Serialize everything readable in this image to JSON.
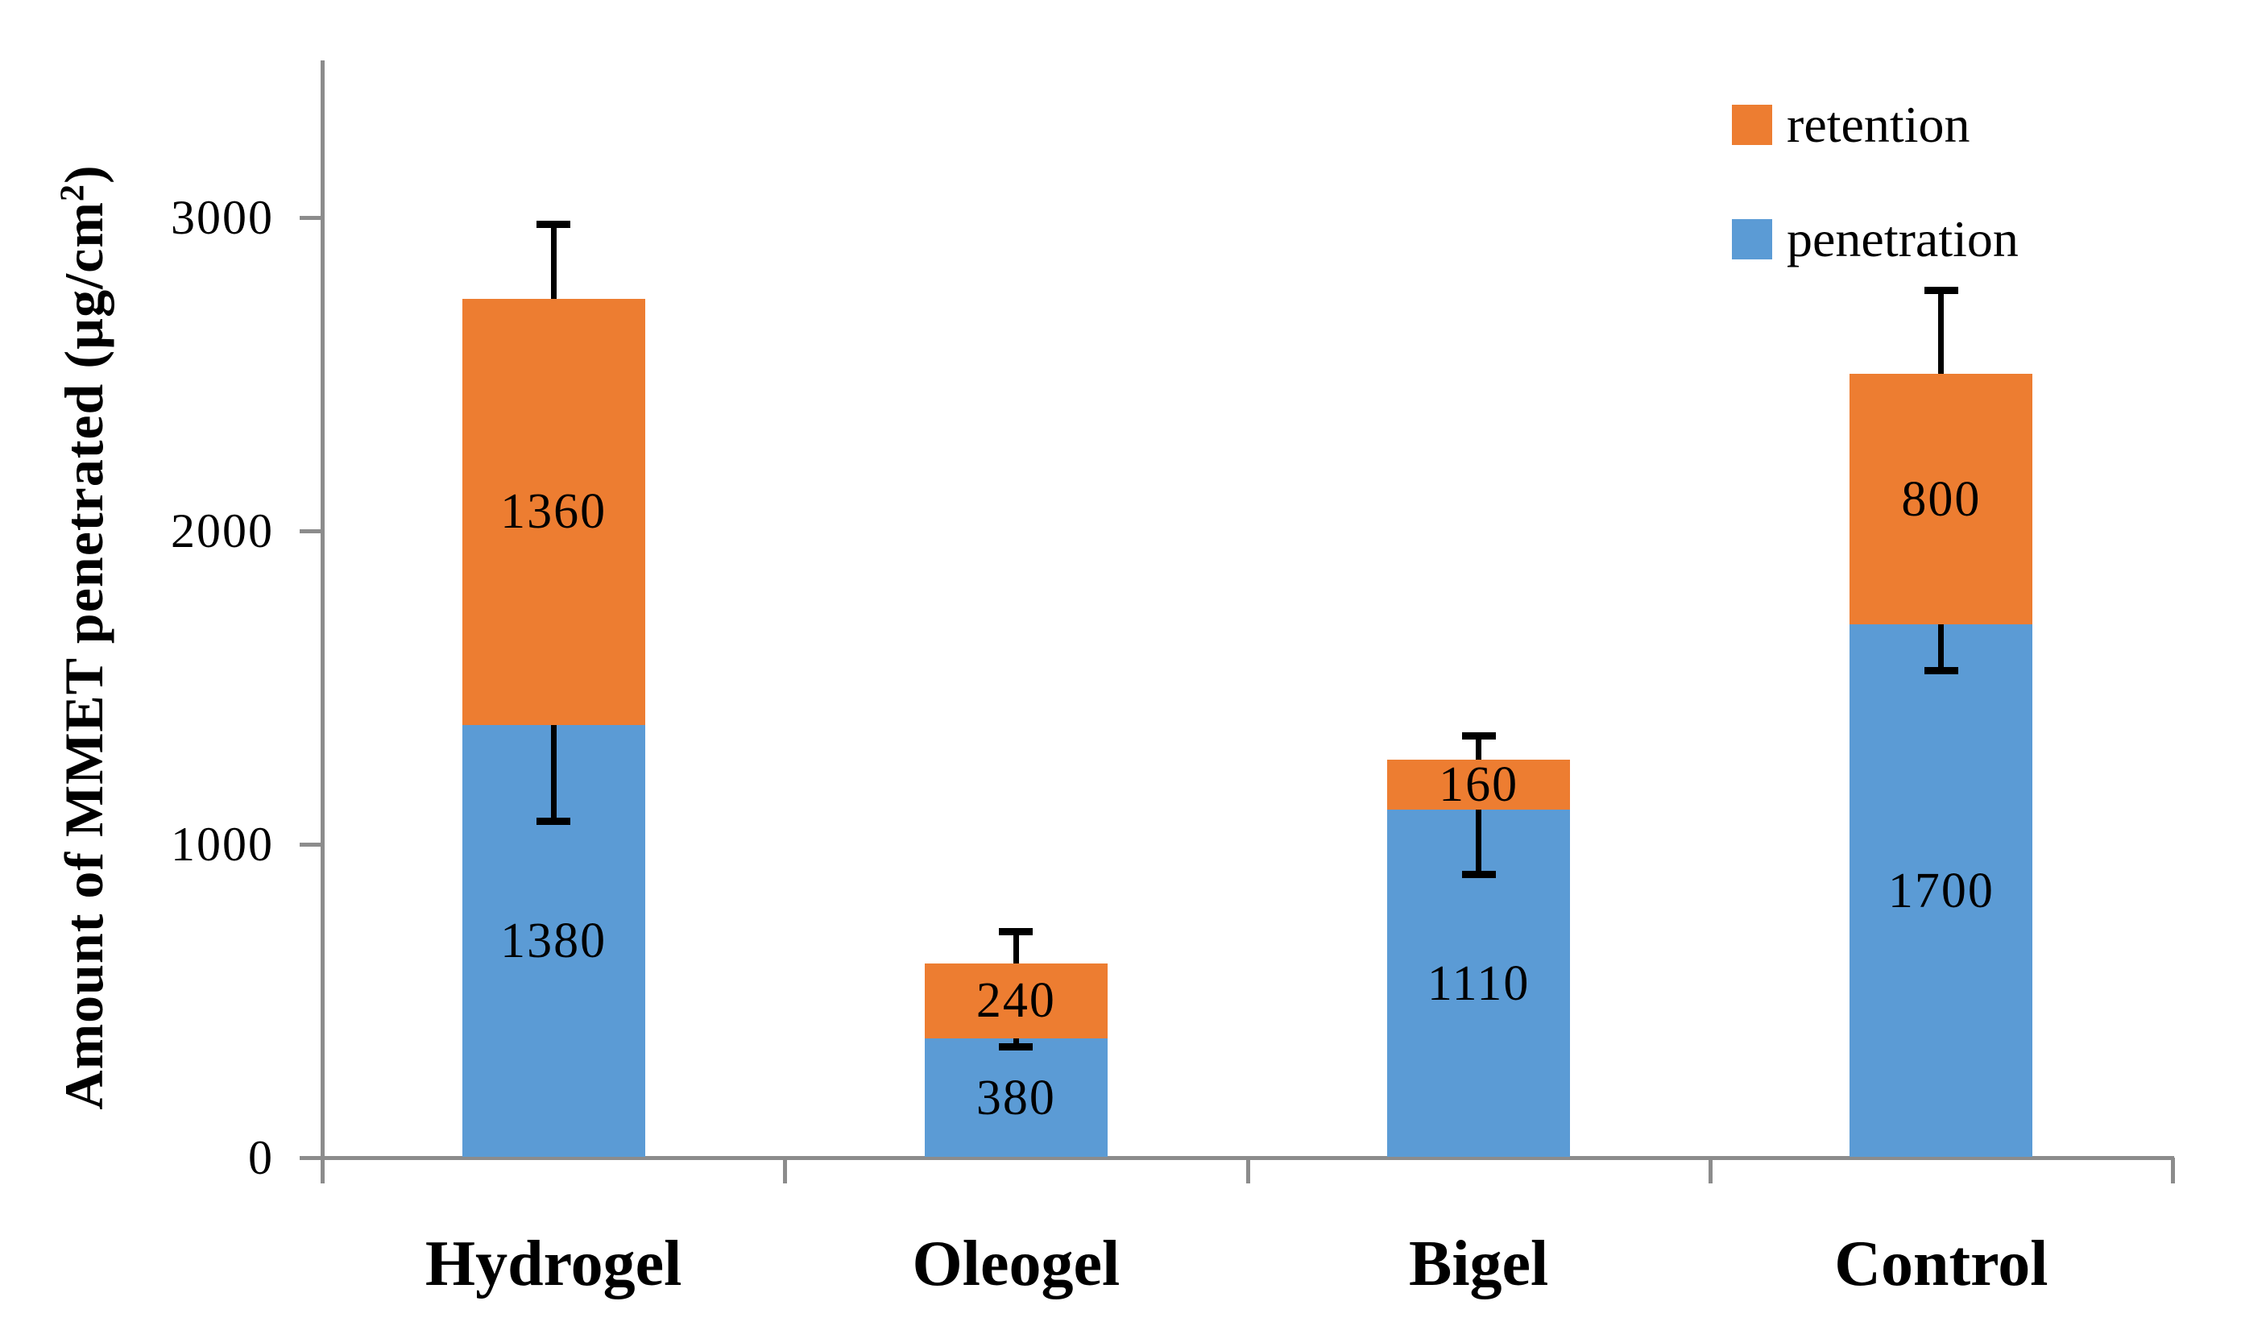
{
  "figure": {
    "background": "#ffffff"
  },
  "chart_data": {
    "type": "bar",
    "subtype": "stacked-column",
    "title": "",
    "xlabel": "",
    "ylabel": {
      "prefix": "Amount of MMET penetrated (µg/cm",
      "sup": "2",
      "suffix": ")"
    },
    "categories": [
      "Hydrogel",
      "Oleogel",
      "Bigel",
      "Control"
    ],
    "series": [
      {
        "name": "penetration",
        "color": "#5B9BD5",
        "values": [
          1380,
          380,
          1110,
          1700
        ],
        "data_labels": [
          "1380",
          "380",
          "1110",
          "1700"
        ],
        "error_minus": [
          300,
          20,
          200,
          140
        ]
      },
      {
        "name": "retention",
        "color": "#ED7D31",
        "values": [
          1360,
          240,
          160,
          800
        ],
        "data_labels": [
          "1360",
          "240",
          "160",
          "800"
        ],
        "stack_totals": [
          2740,
          620,
          1270,
          2500
        ],
        "total_error_plus": [
          230,
          95,
          70,
          260
        ]
      }
    ],
    "y_axis": {
      "min": 0,
      "max": 3500,
      "tick_interval": 1000,
      "ticks": [
        0,
        1000,
        2000,
        3000
      ],
      "tick_labels": [
        "0",
        "1000",
        "2000",
        "3000"
      ]
    },
    "legend": [
      {
        "label": "retention",
        "color": "#ED7D31"
      },
      {
        "label": "penetration",
        "color": "#5B9BD5"
      }
    ],
    "legend_position": "top-right",
    "grid": false,
    "axis_color": "#8C8C8C",
    "error_bar_color": "#000000",
    "text_color": "#000000"
  }
}
